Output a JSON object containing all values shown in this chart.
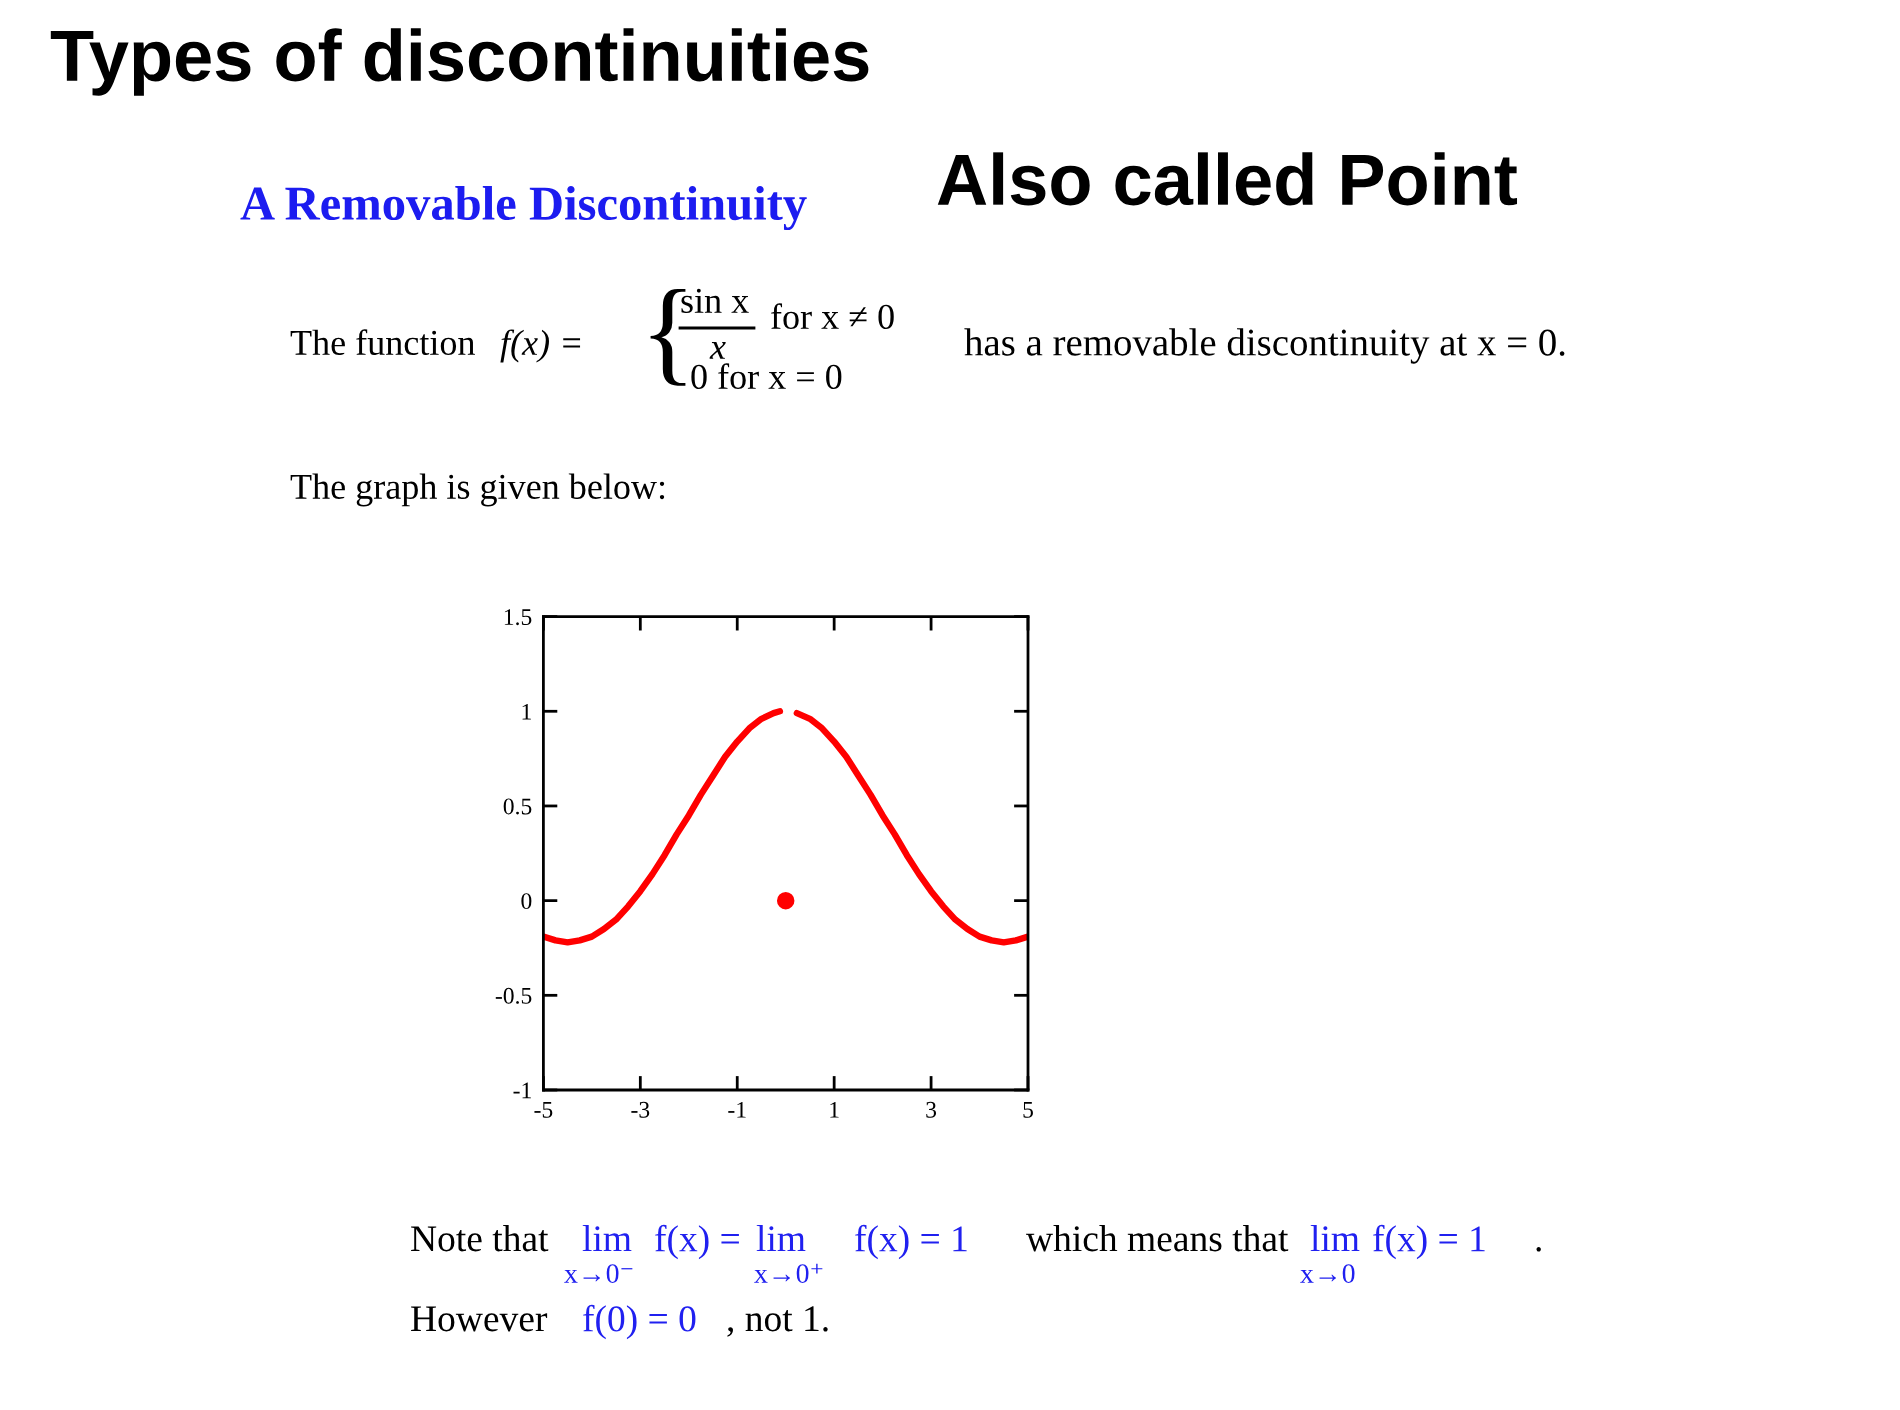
{
  "chart_data": {
    "type": "line",
    "title": "Types of discontinuities",
    "subtitle": "A Removable Discontinuity",
    "annotations": [
      "Also called Point",
      "The function",
      "f(x) =",
      "{",
      "sin x",
      "x",
      "for x ≠ 0",
      "0 for x = 0",
      "has a removable discontinuity at x = 0.",
      "The graph is given below:",
      "Note that",
      "lim",
      "x→0⁻",
      "f(x) =",
      "lim",
      "x→0⁺",
      "f(x) = 1",
      "which means that",
      "lim",
      "x→0",
      "f(x) = 1",
      ".",
      "However",
      "f(0) = 0",
      ", not 1."
    ],
    "series": [
      {
        "color": "#ff0000",
        "x": [
          -5,
          -4.75,
          -4.5,
          -4.25,
          -4,
          -3.75,
          -3.5,
          -3.25,
          -3,
          -2.75,
          -2.5,
          -2.25,
          -2,
          -1.75,
          -1.5,
          -1.25,
          -1,
          -0.75,
          -0.5,
          -0.25,
          -0.12
        ],
        "values": [
          -0.19,
          -0.21,
          -0.22,
          -0.21,
          -0.19,
          -0.15,
          -0.1,
          -0.03,
          0.05,
          0.14,
          0.24,
          0.35,
          0.45,
          0.56,
          0.66,
          0.76,
          0.84,
          0.91,
          0.96,
          0.99,
          1.0
        ]
      },
      {
        "color": "#ff0000",
        "x": [
          0.23,
          0.5,
          0.75,
          1,
          1.25,
          1.5,
          1.75,
          2,
          2.25,
          2.5,
          2.75,
          3,
          3.25,
          3.5,
          3.75,
          4,
          4.25,
          4.5,
          4.75,
          5
        ],
        "values": [
          0.99,
          0.96,
          0.91,
          0.84,
          0.76,
          0.66,
          0.56,
          0.45,
          0.35,
          0.24,
          0.14,
          0.05,
          -0.03,
          -0.1,
          -0.15,
          -0.19,
          -0.21,
          -0.22,
          -0.21,
          -0.19
        ]
      },
      {
        "type": "scatter",
        "color": "#ff0000",
        "marker": "circle",
        "x": [
          0
        ],
        "values": [
          0
        ]
      }
    ],
    "xlim": [
      -5,
      5
    ],
    "ylim": [
      -1,
      1.5
    ],
    "xticks": [
      -5,
      -3,
      -1,
      1,
      3,
      5
    ],
    "yticks": [
      -1,
      -0.5,
      0,
      0.5,
      1,
      1.5
    ],
    "grid": false
  }
}
